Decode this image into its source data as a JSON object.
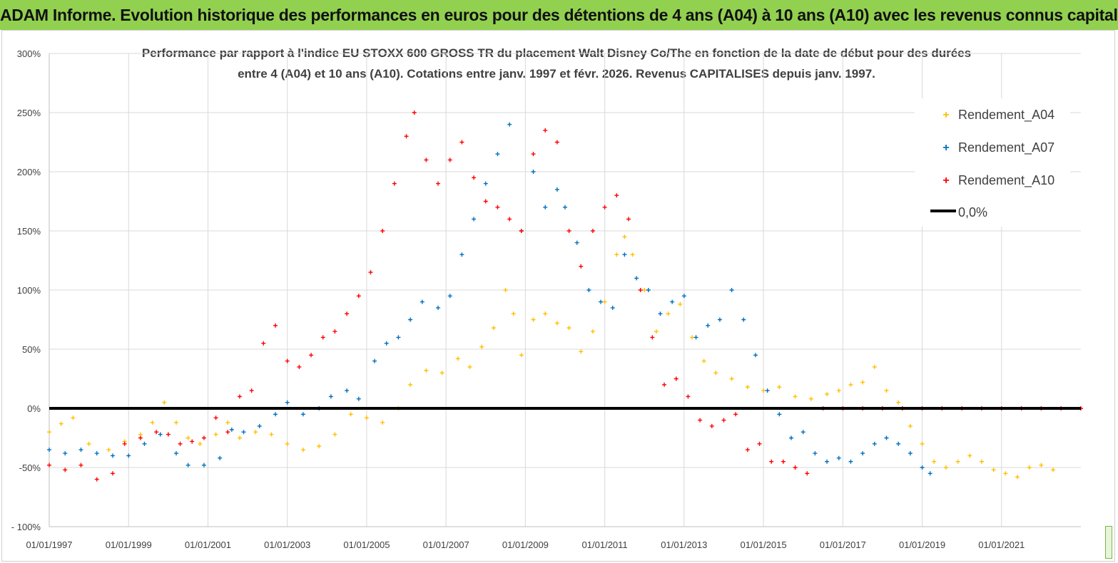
{
  "header": {
    "banner_title": "ADAM Informe. Evolution historique des performances en euros pour des détentions de 4 ans (A04) à 10 ans (A10) avec les revenus connus capitalisés"
  },
  "colors": {
    "banner_bg": "#92d050",
    "a04": "#ffc000",
    "a07": "#0070c0",
    "a10": "#ff0000",
    "zero": "#000000"
  },
  "chart_data": {
    "type": "scatter",
    "title_line1": "Performance par rapport à l'indice EU STOXX 600 GROSS TR  du placement Walt Disney Co/The en fonction de la date de début pour des durées",
    "title_line2": "entre 4 (A04) et 10 ans (A10). Cotations entre janv. 1997 et févr. 2026. Revenus CAPITALISES depuis janv. 1997.",
    "x_start_year": 1997.0,
    "x_end_year": 2023.0,
    "x_ticks": [
      {
        "year": 1997,
        "label": "01/01/1997"
      },
      {
        "year": 1999,
        "label": "01/01/1999"
      },
      {
        "year": 2001,
        "label": "01/01/2001"
      },
      {
        "year": 2003,
        "label": "01/01/2003"
      },
      {
        "year": 2005,
        "label": "01/01/2005"
      },
      {
        "year": 2007,
        "label": "01/01/2007"
      },
      {
        "year": 2009,
        "label": "01/01/2009"
      },
      {
        "year": 2011,
        "label": "01/01/2011"
      },
      {
        "year": 2013,
        "label": "01/01/2013"
      },
      {
        "year": 2015,
        "label": "01/01/2015"
      },
      {
        "year": 2017,
        "label": "01/01/2017"
      },
      {
        "year": 2019,
        "label": "01/01/2019"
      },
      {
        "year": 2021,
        "label": "01/01/2021"
      }
    ],
    "y_range": [
      -100,
      300
    ],
    "y_ticks": [
      {
        "value": 300,
        "label": "300%"
      },
      {
        "value": 250,
        "label": "250%"
      },
      {
        "value": 200,
        "label": "200%"
      },
      {
        "value": 150,
        "label": "150%"
      },
      {
        "value": 100,
        "label": "100%"
      },
      {
        "value": 50,
        "label": "50%"
      },
      {
        "value": 0,
        "label": "0%"
      },
      {
        "value": -50,
        "label": "-50%"
      },
      {
        "value": -100,
        "label": "- 100%"
      }
    ],
    "legend_position": "top-right",
    "legend": [
      {
        "key": "a04",
        "label": "Rendement_A04"
      },
      {
        "key": "a07",
        "label": "Rendement_A07"
      },
      {
        "key": "a10",
        "label": "Rendement_A10"
      },
      {
        "key": "zero",
        "label": "0,0%"
      }
    ],
    "zero_line_value": 0,
    "series": [
      {
        "name": "Rendement_A04",
        "key": "a04",
        "points": [
          [
            1997.0,
            -20
          ],
          [
            1997.3,
            -13
          ],
          [
            1997.6,
            -8
          ],
          [
            1998.0,
            -30
          ],
          [
            1998.5,
            -35
          ],
          [
            1998.9,
            -28
          ],
          [
            1999.3,
            -22
          ],
          [
            1999.6,
            -12
          ],
          [
            1999.9,
            5
          ],
          [
            2000.2,
            -12
          ],
          [
            2000.5,
            -25
          ],
          [
            2000.8,
            -30
          ],
          [
            2001.2,
            -22
          ],
          [
            2001.5,
            -12
          ],
          [
            2001.8,
            -25
          ],
          [
            2002.2,
            -20
          ],
          [
            2002.6,
            -22
          ],
          [
            2003.0,
            -30
          ],
          [
            2003.4,
            -35
          ],
          [
            2003.8,
            -32
          ],
          [
            2004.2,
            -22
          ],
          [
            2004.6,
            -5
          ],
          [
            2005.0,
            -8
          ],
          [
            2005.4,
            -12
          ],
          [
            2005.8,
            0
          ],
          [
            2006.1,
            20
          ],
          [
            2006.5,
            32
          ],
          [
            2006.9,
            30
          ],
          [
            2007.3,
            42
          ],
          [
            2007.6,
            35
          ],
          [
            2007.9,
            52
          ],
          [
            2008.2,
            68
          ],
          [
            2008.5,
            100
          ],
          [
            2008.7,
            80
          ],
          [
            2008.9,
            45
          ],
          [
            2009.2,
            75
          ],
          [
            2009.5,
            80
          ],
          [
            2009.8,
            72
          ],
          [
            2010.1,
            68
          ],
          [
            2010.4,
            48
          ],
          [
            2010.7,
            65
          ],
          [
            2011.0,
            90
          ],
          [
            2011.3,
            130
          ],
          [
            2011.5,
            145
          ],
          [
            2011.7,
            130
          ],
          [
            2012.0,
            100
          ],
          [
            2012.3,
            65
          ],
          [
            2012.6,
            80
          ],
          [
            2012.9,
            88
          ],
          [
            2013.2,
            60
          ],
          [
            2013.5,
            40
          ],
          [
            2013.8,
            30
          ],
          [
            2014.2,
            25
          ],
          [
            2014.6,
            18
          ],
          [
            2015.0,
            15
          ],
          [
            2015.4,
            18
          ],
          [
            2015.8,
            10
          ],
          [
            2016.2,
            8
          ],
          [
            2016.6,
            12
          ],
          [
            2016.9,
            15
          ],
          [
            2017.2,
            20
          ],
          [
            2017.5,
            22
          ],
          [
            2017.8,
            35
          ],
          [
            2018.1,
            15
          ],
          [
            2018.4,
            5
          ],
          [
            2018.7,
            -15
          ],
          [
            2019.0,
            -30
          ],
          [
            2019.3,
            -45
          ],
          [
            2019.6,
            -50
          ],
          [
            2019.9,
            -45
          ],
          [
            2020.2,
            -40
          ],
          [
            2020.5,
            -45
          ],
          [
            2020.8,
            -52
          ],
          [
            2021.1,
            -55
          ],
          [
            2021.4,
            -58
          ],
          [
            2021.7,
            -50
          ],
          [
            2022.0,
            -48
          ],
          [
            2022.3,
            -52
          ]
        ]
      },
      {
        "name": "Rendement_A07",
        "key": "a07",
        "points": [
          [
            1997.0,
            -35
          ],
          [
            1997.4,
            -38
          ],
          [
            1997.8,
            -35
          ],
          [
            1998.2,
            -38
          ],
          [
            1998.6,
            -40
          ],
          [
            1999.0,
            -40
          ],
          [
            1999.4,
            -30
          ],
          [
            1999.8,
            -22
          ],
          [
            2000.2,
            -38
          ],
          [
            2000.5,
            -48
          ],
          [
            2000.9,
            -48
          ],
          [
            2001.3,
            -42
          ],
          [
            2001.6,
            -18
          ],
          [
            2001.9,
            -20
          ],
          [
            2002.3,
            -15
          ],
          [
            2002.7,
            -5
          ],
          [
            2003.0,
            5
          ],
          [
            2003.4,
            -5
          ],
          [
            2003.8,
            0
          ],
          [
            2004.1,
            10
          ],
          [
            2004.5,
            15
          ],
          [
            2004.8,
            8
          ],
          [
            2005.2,
            40
          ],
          [
            2005.5,
            55
          ],
          [
            2005.8,
            60
          ],
          [
            2006.1,
            75
          ],
          [
            2006.4,
            90
          ],
          [
            2006.8,
            85
          ],
          [
            2007.1,
            95
          ],
          [
            2007.4,
            130
          ],
          [
            2007.7,
            160
          ],
          [
            2008.0,
            190
          ],
          [
            2008.3,
            215
          ],
          [
            2008.6,
            240
          ],
          [
            2008.9,
            150
          ],
          [
            2009.2,
            200
          ],
          [
            2009.5,
            170
          ],
          [
            2009.8,
            185
          ],
          [
            2010.0,
            170
          ],
          [
            2010.3,
            140
          ],
          [
            2010.6,
            100
          ],
          [
            2010.9,
            90
          ],
          [
            2011.2,
            85
          ],
          [
            2011.5,
            130
          ],
          [
            2011.8,
            110
          ],
          [
            2012.1,
            100
          ],
          [
            2012.4,
            80
          ],
          [
            2012.7,
            90
          ],
          [
            2013.0,
            95
          ],
          [
            2013.3,
            60
          ],
          [
            2013.6,
            70
          ],
          [
            2013.9,
            75
          ],
          [
            2014.2,
            100
          ],
          [
            2014.5,
            75
          ],
          [
            2014.8,
            45
          ],
          [
            2015.1,
            15
          ],
          [
            2015.4,
            -5
          ],
          [
            2015.7,
            -25
          ],
          [
            2016.0,
            -20
          ],
          [
            2016.3,
            -38
          ],
          [
            2016.6,
            -45
          ],
          [
            2016.9,
            -42
          ],
          [
            2017.2,
            -45
          ],
          [
            2017.5,
            -38
          ],
          [
            2017.8,
            -30
          ],
          [
            2018.1,
            -25
          ],
          [
            2018.4,
            -30
          ],
          [
            2018.7,
            -38
          ],
          [
            2019.0,
            -50
          ],
          [
            2019.2,
            -55
          ]
        ]
      },
      {
        "name": "Rendement_A10",
        "key": "a10",
        "points": [
          [
            1997.0,
            -48
          ],
          [
            1997.4,
            -52
          ],
          [
            1997.8,
            -48
          ],
          [
            1998.2,
            -60
          ],
          [
            1998.6,
            -55
          ],
          [
            1998.9,
            -30
          ],
          [
            1999.3,
            -25
          ],
          [
            1999.7,
            -20
          ],
          [
            2000.0,
            -22
          ],
          [
            2000.3,
            -30
          ],
          [
            2000.6,
            -28
          ],
          [
            2000.9,
            -25
          ],
          [
            2001.2,
            -8
          ],
          [
            2001.5,
            -20
          ],
          [
            2001.8,
            10
          ],
          [
            2002.1,
            15
          ],
          [
            2002.4,
            55
          ],
          [
            2002.7,
            70
          ],
          [
            2003.0,
            40
          ],
          [
            2003.3,
            35
          ],
          [
            2003.6,
            45
          ],
          [
            2003.9,
            60
          ],
          [
            2004.2,
            65
          ],
          [
            2004.5,
            80
          ],
          [
            2004.8,
            95
          ],
          [
            2005.1,
            115
          ],
          [
            2005.4,
            150
          ],
          [
            2005.7,
            190
          ],
          [
            2006.0,
            230
          ],
          [
            2006.2,
            250
          ],
          [
            2006.5,
            210
          ],
          [
            2006.8,
            190
          ],
          [
            2007.1,
            210
          ],
          [
            2007.4,
            225
          ],
          [
            2007.7,
            195
          ],
          [
            2008.0,
            175
          ],
          [
            2008.3,
            170
          ],
          [
            2008.6,
            160
          ],
          [
            2008.9,
            150
          ],
          [
            2009.2,
            215
          ],
          [
            2009.5,
            235
          ],
          [
            2009.8,
            225
          ],
          [
            2010.1,
            150
          ],
          [
            2010.4,
            120
          ],
          [
            2010.7,
            150
          ],
          [
            2011.0,
            170
          ],
          [
            2011.3,
            180
          ],
          [
            2011.6,
            160
          ],
          [
            2011.9,
            100
          ],
          [
            2012.2,
            60
          ],
          [
            2012.5,
            20
          ],
          [
            2012.8,
            25
          ],
          [
            2013.1,
            10
          ],
          [
            2013.4,
            -10
          ],
          [
            2013.7,
            -15
          ],
          [
            2014.0,
            -10
          ],
          [
            2014.3,
            -5
          ],
          [
            2014.6,
            -35
          ],
          [
            2014.9,
            -30
          ],
          [
            2015.2,
            -45
          ],
          [
            2015.5,
            -45
          ],
          [
            2015.8,
            -50
          ],
          [
            2016.1,
            -55
          ],
          [
            2016.5,
            0
          ],
          [
            2017.0,
            0
          ],
          [
            2017.5,
            0
          ],
          [
            2018.0,
            0
          ],
          [
            2018.5,
            0
          ],
          [
            2019.0,
            0
          ],
          [
            2019.5,
            0
          ],
          [
            2020.0,
            0
          ],
          [
            2020.5,
            0
          ],
          [
            2021.0,
            0
          ],
          [
            2021.5,
            0
          ],
          [
            2022.0,
            0
          ],
          [
            2022.5,
            0
          ],
          [
            2023.0,
            0
          ]
        ]
      }
    ]
  }
}
